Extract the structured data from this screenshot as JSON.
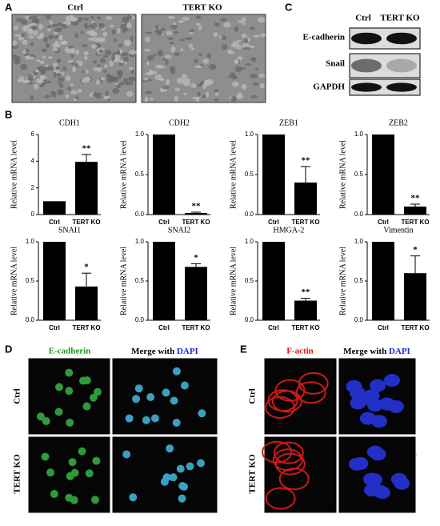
{
  "panels": {
    "a": "A",
    "b": "B",
    "c": "C",
    "d": "D",
    "e": "E"
  },
  "panel_a": {
    "columns": [
      "Ctrl",
      "TERT KO"
    ]
  },
  "panel_c": {
    "columns": [
      "Ctrl",
      "TERT KO"
    ],
    "rows": [
      "E-cadherin",
      "Snail",
      "GAPDH"
    ]
  },
  "panel_d": {
    "stain": "E-cadherin",
    "merge": "Merge with",
    "dapi": "DAPI",
    "rows": [
      "Ctrl",
      "TERT KO"
    ]
  },
  "panel_e": {
    "stain": "F-actin",
    "merge": "Merge with",
    "dapi": "DAPI",
    "rows": [
      "Ctrl",
      "TERT KO"
    ]
  },
  "chart_data": [
    {
      "type": "bar",
      "title": "CDH1",
      "y_label": "Relative mRNA level",
      "categories": [
        "Ctrl",
        "TERT KO"
      ],
      "values": [
        1,
        3.95
      ],
      "errors": [
        null,
        0.55
      ],
      "annotations": [
        null,
        "**"
      ],
      "color": "#000000",
      "ylim": [
        0,
        6
      ],
      "yticks": [
        0,
        2,
        4,
        6
      ]
    },
    {
      "type": "bar",
      "title": "CDH2",
      "y_label": "Relative mRNA level",
      "categories": [
        "Ctrl",
        "TERT KO"
      ],
      "values": [
        1,
        0.02
      ],
      "errors": [
        null,
        0.01
      ],
      "annotations": [
        null,
        "**"
      ],
      "color": "#000000",
      "ylim": [
        0,
        1
      ],
      "yticks": [
        {
          "value": 0,
          "label": "0.0"
        },
        0.5,
        {
          "value": 1,
          "label": "1.0"
        }
      ]
    },
    {
      "type": "bar",
      "title": "ZEB1",
      "y_label": "Relative mRNA level",
      "categories": [
        "Ctrl",
        "TERT KO"
      ],
      "values": [
        1,
        0.4
      ],
      "errors": [
        null,
        0.2
      ],
      "annotations": [
        null,
        "**"
      ],
      "color": "#000000",
      "ylim": [
        0,
        1
      ],
      "yticks": [
        {
          "value": 0,
          "label": "0.0"
        },
        0.5,
        {
          "value": 1,
          "label": "1.0"
        }
      ]
    },
    {
      "type": "bar",
      "title": "ZEB2",
      "y_label": "Relative mRNA level",
      "categories": [
        "Ctrl",
        "TERT KO"
      ],
      "values": [
        1,
        0.1
      ],
      "errors": [
        null,
        0.03
      ],
      "annotations": [
        null,
        "**"
      ],
      "color": "#000000",
      "ylim": [
        0,
        1
      ],
      "yticks": [
        {
          "value": 0,
          "label": "0.0"
        },
        0.5,
        {
          "value": 1,
          "label": "1.0"
        }
      ]
    },
    {
      "type": "bar",
      "title": "SNAI1",
      "y_label": "Relative mRNA level",
      "categories": [
        "Ctrl",
        "TERT KO"
      ],
      "values": [
        1,
        0.43
      ],
      "errors": [
        null,
        0.17
      ],
      "annotations": [
        null,
        "*"
      ],
      "color": "#000000",
      "ylim": [
        0,
        1
      ],
      "yticks": [
        {
          "value": 0,
          "label": "0.0"
        },
        0.5,
        {
          "value": 1,
          "label": "1.0"
        }
      ]
    },
    {
      "type": "bar",
      "title": "SNAI2",
      "y_label": "Relative mRNA level",
      "categories": [
        "Ctrl",
        "TERT KO"
      ],
      "values": [
        1,
        0.68
      ],
      "errors": [
        null,
        0.04
      ],
      "annotations": [
        null,
        "*"
      ],
      "color": "#000000",
      "ylim": [
        0,
        1
      ],
      "yticks": [
        {
          "value": 0,
          "label": "0.0"
        },
        0.5,
        {
          "value": 1,
          "label": "1.0"
        }
      ]
    },
    {
      "type": "bar",
      "title": "HMGA-2",
      "y_label": "Relative mRNA level",
      "categories": [
        "Ctrl",
        "TERT KO"
      ],
      "values": [
        1,
        0.25
      ],
      "errors": [
        null,
        0.03
      ],
      "annotations": [
        null,
        "**"
      ],
      "color": "#000000",
      "ylim": [
        0,
        1
      ],
      "yticks": [
        {
          "value": 0,
          "label": "0.0"
        },
        0.5,
        {
          "value": 1,
          "label": "1.0"
        }
      ]
    },
    {
      "type": "bar",
      "title": "Vimentin",
      "y_label": "Relative mRNA level",
      "categories": [
        "Ctrl",
        "TERT KO"
      ],
      "values": [
        1,
        0.6
      ],
      "errors": [
        null,
        0.22
      ],
      "annotations": [
        null,
        "*"
      ],
      "color": "#000000",
      "ylim": [
        0,
        1
      ],
      "yticks": [
        {
          "value": 0,
          "label": "0.0"
        },
        0.5,
        {
          "value": 1,
          "label": "1.0"
        }
      ]
    }
  ]
}
